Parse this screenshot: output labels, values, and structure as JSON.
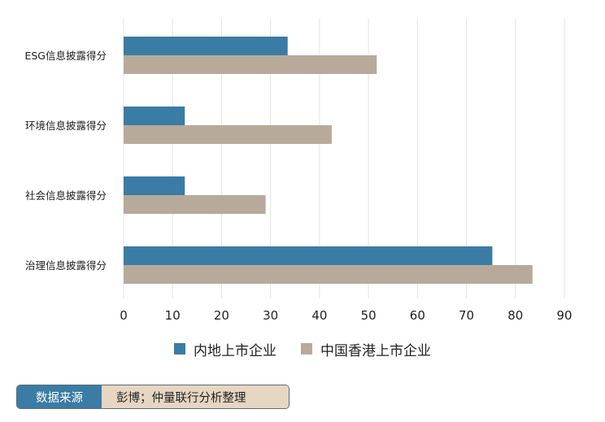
{
  "chart_data": {
    "type": "bar",
    "orientation": "horizontal",
    "categories": [
      "ESG信息披露得分",
      "环境信息披露得分",
      "社会信息披露得分",
      "治理信息披露得分"
    ],
    "series": [
      {
        "name": "内地上市企业",
        "color": "#3a7ca5",
        "values": [
          33.5,
          12.5,
          12.5,
          75.3
        ]
      },
      {
        "name": "中国香港上市企业",
        "color": "#b8aa9b",
        "values": [
          51.7,
          42.5,
          29.0,
          83.5
        ]
      }
    ],
    "xlim": [
      0,
      90
    ],
    "xticks": [
      "0",
      "10",
      "20",
      "30",
      "40",
      "50",
      "60",
      "70",
      "80",
      "90"
    ],
    "grid": true,
    "legend_position": "bottom"
  },
  "source": {
    "label": "数据来源",
    "text": "彭博；仲量联行分析整理"
  }
}
